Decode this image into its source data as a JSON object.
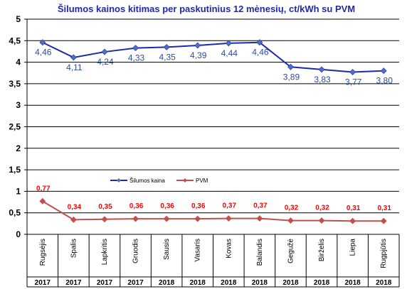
{
  "chart_data": {
    "type": "line",
    "title": "Šilumos kainos kitimas per paskutinius 12 mėnesių, ct/kWh su PVM",
    "categories": [
      "Rugsėjis",
      "Spalis",
      "Lapkritis",
      "Gruodis",
      "Sausis",
      "Vasaris",
      "Kovas",
      "Balandis",
      "Gegužė",
      "Birželis",
      "Liepa",
      "Rugpjūtis"
    ],
    "years": [
      "2017",
      "2017",
      "2017",
      "2017",
      "2018",
      "2018",
      "2018",
      "2018",
      "2018",
      "2018",
      "2018",
      "2018"
    ],
    "series": [
      {
        "name": "Šilumos kaina",
        "color": "#1f2aa8",
        "values": [
          4.46,
          4.11,
          4.24,
          4.33,
          4.35,
          4.39,
          4.44,
          4.46,
          3.89,
          3.83,
          3.77,
          3.8
        ],
        "labels": [
          "4,46",
          "4,11",
          "4,24",
          "4,33",
          "4,35",
          "4,39",
          "4,44",
          "4,46",
          "3,89",
          "3,83",
          "3,77",
          "3,80"
        ],
        "label_color": "#2b4c9b"
      },
      {
        "name": "PVM",
        "color": "#c0504d",
        "values": [
          0.77,
          0.34,
          0.35,
          0.36,
          0.36,
          0.36,
          0.37,
          0.37,
          0.32,
          0.32,
          0.31,
          0.31
        ],
        "labels": [
          "0,77",
          "0,34",
          "0,35",
          "0,36",
          "0,36",
          "0,36",
          "0,37",
          "0,37",
          "0,32",
          "0,32",
          "0,31",
          "0,31"
        ],
        "label_color": "#ff0000"
      }
    ],
    "y_ticks": [
      "0",
      "0,5",
      "1",
      "1,5",
      "2",
      "2,5",
      "3",
      "3,5",
      "4",
      "4,5",
      "5"
    ],
    "ylim": [
      0,
      5
    ],
    "grid": true,
    "legend_position": "inside-middle",
    "title_color": "#1f2aa8"
  }
}
